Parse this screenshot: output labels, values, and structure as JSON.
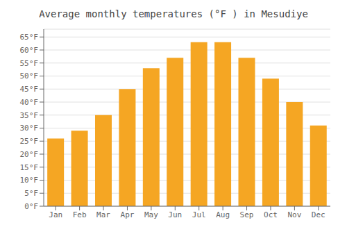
{
  "chart_data": {
    "type": "bar",
    "title": "Average monthly temperatures (°F ) in Mesudiye",
    "categories": [
      "Jan",
      "Feb",
      "Mar",
      "Apr",
      "May",
      "Jun",
      "Jul",
      "Aug",
      "Sep",
      "Oct",
      "Nov",
      "Dec"
    ],
    "values": [
      26,
      29,
      35,
      45,
      53,
      57,
      63,
      63,
      57,
      49,
      40,
      31
    ],
    "color": "#F5A623",
    "ylim": [
      0,
      68
    ],
    "yticks": [
      {
        "value": 0,
        "label": "0°F"
      },
      {
        "value": 5,
        "label": "5°F"
      },
      {
        "value": 10,
        "label": "10°F"
      },
      {
        "value": 15,
        "label": "15°F"
      },
      {
        "value": 20,
        "label": "20°F"
      },
      {
        "value": 25,
        "label": "25°F"
      },
      {
        "value": 30,
        "label": "30°F"
      },
      {
        "value": 35,
        "label": "35°F"
      },
      {
        "value": 40,
        "label": "40°F"
      },
      {
        "value": 45,
        "label": "45°F"
      },
      {
        "value": 50,
        "label": "50°F"
      },
      {
        "value": 55,
        "label": "55°F"
      },
      {
        "value": 60,
        "label": "60°F"
      },
      {
        "value": 65,
        "label": "65°F"
      }
    ],
    "grid": true
  }
}
